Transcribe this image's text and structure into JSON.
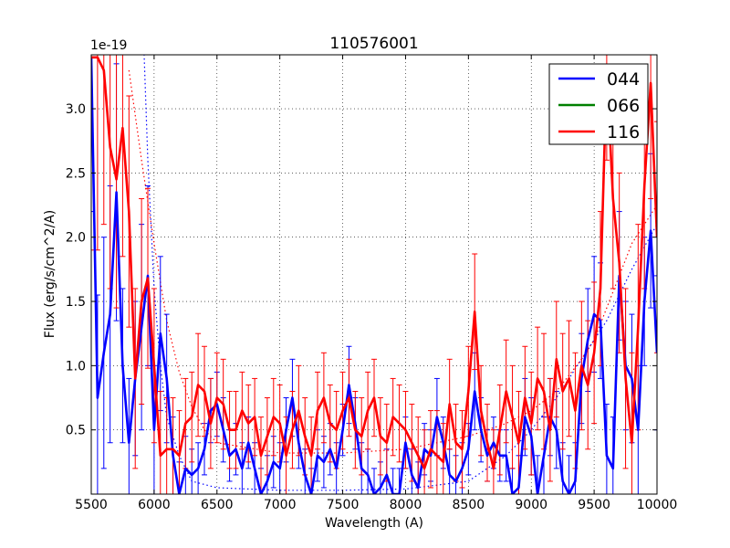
{
  "chart_data": {
    "type": "line",
    "title": "110576001",
    "xlabel": "Wavelength (A)",
    "ylabel": "Flux (erg/s/cm^2/A)",
    "offset_label": "1e-19",
    "xlim": [
      5500,
      10000
    ],
    "ylim": [
      0,
      3.42
    ],
    "y_scale_note": "values in units of 1e-19",
    "grid": true,
    "legend_position": "top-right",
    "x_ticks": [
      5500,
      6000,
      6500,
      7000,
      7500,
      8000,
      8500,
      9000,
      9500,
      10000
    ],
    "x_tick_labels": [
      "5500",
      "6000",
      "6500",
      "7000",
      "7500",
      "8000",
      "8500",
      "9000",
      "9500",
      "10000"
    ],
    "y_ticks": [
      0.5,
      1.0,
      1.5,
      2.0,
      2.5,
      3.0
    ],
    "y_tick_labels": [
      "0.5",
      "1.0",
      "1.5",
      "2.0",
      "2.5",
      "3.0"
    ],
    "series": [
      {
        "name": "044",
        "color": "#0000ff",
        "x": [
          5500,
          5550,
          5600,
          5650,
          5700,
          5750,
          5800,
          5850,
          5900,
          5950,
          6000,
          6050,
          6100,
          6150,
          6200,
          6250,
          6300,
          6350,
          6400,
          6450,
          6500,
          6550,
          6600,
          6650,
          6700,
          6750,
          6800,
          6850,
          6900,
          6950,
          7000,
          7050,
          7100,
          7150,
          7200,
          7250,
          7300,
          7350,
          7400,
          7450,
          7500,
          7550,
          7600,
          7650,
          7700,
          7750,
          7800,
          7850,
          7900,
          7950,
          8000,
          8050,
          8100,
          8150,
          8200,
          8250,
          8300,
          8350,
          8400,
          8450,
          8500,
          8550,
          8600,
          8650,
          8700,
          8750,
          8800,
          8850,
          8900,
          8950,
          9000,
          9050,
          9100,
          9150,
          9200,
          9250,
          9300,
          9350,
          9400,
          9450,
          9500,
          9550,
          9600,
          9650,
          9700,
          9750,
          9800,
          9850,
          9900,
          9950,
          10000
        ],
        "values": [
          3.4,
          0.75,
          1.1,
          1.4,
          2.35,
          1.0,
          0.4,
          0.9,
          1.3,
          1.7,
          0.5,
          1.25,
          0.9,
          0.3,
          0.0,
          0.2,
          0.15,
          0.2,
          0.35,
          0.65,
          0.7,
          0.5,
          0.3,
          0.35,
          0.2,
          0.4,
          0.2,
          0.0,
          0.1,
          0.25,
          0.2,
          0.5,
          0.75,
          0.4,
          0.15,
          0.0,
          0.3,
          0.25,
          0.35,
          0.2,
          0.5,
          0.85,
          0.55,
          0.2,
          0.15,
          0.0,
          0.05,
          0.15,
          0.0,
          0.0,
          0.4,
          0.15,
          0.05,
          0.35,
          0.3,
          0.6,
          0.4,
          0.15,
          0.1,
          0.2,
          0.35,
          0.8,
          0.5,
          0.3,
          0.4,
          0.3,
          0.3,
          0.0,
          0.05,
          0.6,
          0.45,
          0.0,
          0.3,
          0.6,
          0.5,
          0.1,
          0.0,
          0.1,
          0.9,
          1.2,
          1.4,
          1.35,
          0.3,
          0.2,
          1.7,
          1.0,
          0.9,
          0.5,
          1.5,
          2.05,
          1.1
        ],
        "errors": [
          1.2,
          0.8,
          0.9,
          1.0,
          1.0,
          0.6,
          0.5,
          0.6,
          0.8,
          0.7,
          0.5,
          0.6,
          0.5,
          0.3,
          0.25,
          0.25,
          0.2,
          0.2,
          0.2,
          0.25,
          0.25,
          0.25,
          0.2,
          0.2,
          0.2,
          0.2,
          0.2,
          0.2,
          0.2,
          0.2,
          0.2,
          0.25,
          0.3,
          0.2,
          0.2,
          0.2,
          0.2,
          0.2,
          0.2,
          0.2,
          0.2,
          0.3,
          0.2,
          0.2,
          0.2,
          0.2,
          0.2,
          0.2,
          0.2,
          0.2,
          0.2,
          0.2,
          0.2,
          0.2,
          0.2,
          0.3,
          0.2,
          0.2,
          0.2,
          0.2,
          0.2,
          0.3,
          0.25,
          0.2,
          0.2,
          0.2,
          0.2,
          0.2,
          0.25,
          0.3,
          0.3,
          0.3,
          0.3,
          0.3,
          0.3,
          0.3,
          0.3,
          0.3,
          0.35,
          0.4,
          0.45,
          0.45,
          0.4,
          0.4,
          0.5,
          0.5,
          0.5,
          0.5,
          0.5,
          0.6,
          0.6
        ]
      },
      {
        "name": "066",
        "color": "#008000",
        "x": [],
        "values": [],
        "errors": []
      },
      {
        "name": "116",
        "color": "#ff0000",
        "x": [
          5500,
          5550,
          5600,
          5650,
          5700,
          5750,
          5800,
          5850,
          5900,
          5950,
          6000,
          6050,
          6100,
          6150,
          6200,
          6250,
          6300,
          6350,
          6400,
          6450,
          6500,
          6550,
          6600,
          6650,
          6700,
          6750,
          6800,
          6850,
          6900,
          6950,
          7000,
          7050,
          7100,
          7150,
          7200,
          7250,
          7300,
          7350,
          7400,
          7450,
          7500,
          7550,
          7600,
          7650,
          7700,
          7750,
          7800,
          7850,
          7900,
          7950,
          8000,
          8050,
          8100,
          8150,
          8200,
          8250,
          8300,
          8350,
          8400,
          8450,
          8500,
          8550,
          8600,
          8650,
          8700,
          8750,
          8800,
          8850,
          8900,
          8950,
          9000,
          9050,
          9100,
          9150,
          9200,
          9250,
          9300,
          9350,
          9400,
          9450,
          9500,
          9550,
          9600,
          9650,
          9700,
          9750,
          9800,
          9850,
          9900,
          9950,
          10000
        ],
        "values": [
          3.4,
          3.4,
          3.3,
          2.7,
          2.45,
          2.85,
          2.2,
          0.9,
          1.5,
          1.68,
          1.0,
          0.3,
          0.35,
          0.35,
          0.3,
          0.55,
          0.6,
          0.85,
          0.8,
          0.55,
          0.75,
          0.7,
          0.5,
          0.5,
          0.65,
          0.55,
          0.6,
          0.3,
          0.45,
          0.6,
          0.55,
          0.3,
          0.5,
          0.65,
          0.45,
          0.3,
          0.65,
          0.75,
          0.55,
          0.5,
          0.65,
          0.75,
          0.5,
          0.45,
          0.65,
          0.75,
          0.45,
          0.4,
          0.6,
          0.55,
          0.5,
          0.4,
          0.3,
          0.2,
          0.35,
          0.3,
          0.25,
          0.7,
          0.4,
          0.35,
          0.8,
          1.42,
          0.65,
          0.4,
          0.2,
          0.5,
          0.8,
          0.6,
          0.4,
          0.75,
          0.55,
          0.9,
          0.8,
          0.5,
          1.05,
          0.8,
          0.9,
          0.65,
          1.0,
          0.85,
          1.1,
          1.6,
          3.3,
          2.3,
          1.8,
          0.9,
          0.4,
          1.3,
          2.4,
          3.2,
          2.0
        ],
        "errors": [
          1.5,
          1.5,
          1.2,
          1.1,
          1.0,
          1.0,
          0.9,
          0.7,
          0.8,
          0.7,
          0.6,
          0.5,
          0.4,
          0.4,
          0.35,
          0.35,
          0.35,
          0.4,
          0.35,
          0.35,
          0.35,
          0.35,
          0.3,
          0.3,
          0.3,
          0.3,
          0.3,
          0.3,
          0.3,
          0.3,
          0.3,
          0.3,
          0.3,
          0.35,
          0.3,
          0.3,
          0.3,
          0.35,
          0.3,
          0.3,
          0.3,
          0.3,
          0.3,
          0.3,
          0.3,
          0.3,
          0.3,
          0.3,
          0.3,
          0.3,
          0.3,
          0.3,
          0.3,
          0.3,
          0.3,
          0.35,
          0.3,
          0.35,
          0.3,
          0.3,
          0.35,
          0.45,
          0.35,
          0.3,
          0.3,
          0.35,
          0.4,
          0.4,
          0.4,
          0.4,
          0.4,
          0.4,
          0.45,
          0.4,
          0.45,
          0.45,
          0.45,
          0.45,
          0.5,
          0.5,
          0.55,
          0.6,
          0.7,
          0.7,
          0.7,
          0.7,
          0.7,
          0.8,
          0.8,
          0.9,
          0.9
        ]
      }
    ],
    "model_curves": [
      {
        "name": "044-model",
        "color": "#0000ff",
        "style": "dotted",
        "x": [
          5900,
          5950,
          6000,
          6050,
          6100,
          6200,
          6300,
          6500,
          7000,
          7500,
          8000,
          8500,
          8800,
          9000,
          9200,
          9400,
          9600,
          9800,
          10000
        ],
        "values": [
          4.0,
          2.6,
          1.6,
          1.0,
          0.6,
          0.3,
          0.1,
          0.05,
          0.03,
          0.03,
          0.04,
          0.1,
          0.3,
          0.5,
          0.75,
          1.05,
          1.35,
          1.75,
          2.1
        ]
      },
      {
        "name": "116-model",
        "color": "#ff0000",
        "style": "dotted",
        "x": [
          5800,
          5900,
          6000,
          6100,
          6200,
          6300,
          6400,
          6500,
          7000,
          7500,
          8000,
          8500,
          8800,
          9000,
          9200,
          9400,
          9500,
          9600,
          9700,
          9800,
          9900,
          10000
        ],
        "values": [
          3.3,
          2.6,
          1.95,
          1.35,
          0.95,
          0.68,
          0.5,
          0.4,
          0.32,
          0.32,
          0.35,
          0.45,
          0.55,
          0.65,
          0.8,
          1.05,
          1.2,
          1.45,
          1.7,
          1.95,
          2.1,
          2.25
        ]
      }
    ]
  }
}
